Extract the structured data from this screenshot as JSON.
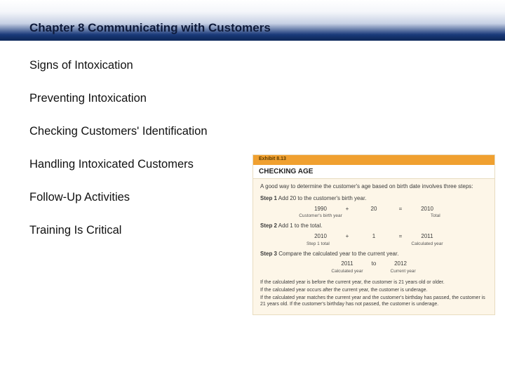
{
  "header": {
    "title": "Chapter 8 Communicating with Customers"
  },
  "topics": [
    "Signs of Intoxication",
    "Preventing Intoxication",
    "Checking Customers' Identification",
    "Handling Intoxicated Customers",
    "Follow-Up Activities",
    "Training Is Critical"
  ],
  "exhibit": {
    "label": "Exhibit 8.13",
    "title": "CHECKING AGE",
    "intro": "A good way to determine the customer's age based on birth date involves three steps:",
    "step1": {
      "label": "Step 1",
      "text": "Add 20 to the customer's birth year.",
      "a": "1990",
      "op1": "+",
      "b": "20",
      "op2": "=",
      "c": "2010",
      "la": "Customer's birth year",
      "lb": "",
      "lc": "Total"
    },
    "step2": {
      "label": "Step 2",
      "text": "Add 1 to the total.",
      "a": "2010",
      "op1": "+",
      "b": "1",
      "op2": "=",
      "c": "2011",
      "la": "Step 1 total",
      "lb": "",
      "lc": "Calculated year"
    },
    "step3": {
      "label": "Step 3",
      "text": "Compare the calculated year to the current year.",
      "a": "2011",
      "op1": "to",
      "c": "2012",
      "la": "Calculated year",
      "lc": "Current year"
    },
    "notes": [
      "If the calculated year is before the current year, the customer is 21 years old or older.",
      "If the calculated year occurs after the current year, the customer is underage.",
      "If the calculated year matches the current year and the customer's birthday has passed, the customer is 21 years old. If the customer's birthday has not passed, the customer is underage."
    ]
  }
}
